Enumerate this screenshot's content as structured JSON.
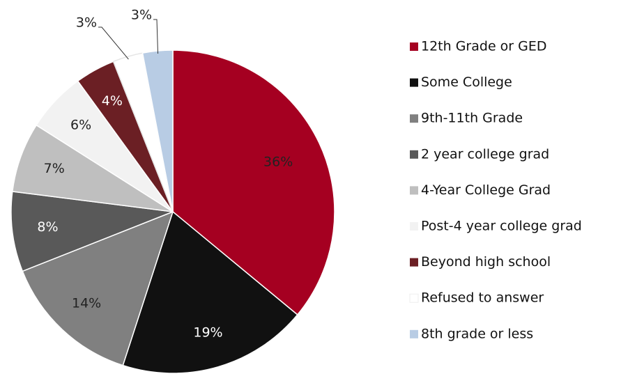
{
  "chart_data": {
    "type": "pie",
    "categories": [
      "12th Grade or GED",
      "Some College",
      "9th-11th Grade",
      "2 year college grad",
      "4-Year College Grad",
      "Post-4 year college grad",
      "Beyond high school",
      "Refused to answer",
      "8th grade or less"
    ],
    "values": [
      36,
      19,
      14,
      8,
      7,
      6,
      4,
      3,
      3
    ],
    "value_labels": [
      "36%",
      "19%",
      "14%",
      "8%",
      "7%",
      "6%",
      "4%",
      "3%",
      "3%"
    ],
    "colors": [
      "#a50021",
      "#111111",
      "#808080",
      "#595959",
      "#bfbfbf",
      "#f2f2f2",
      "#6b1f24",
      "#ffffff",
      "#b8cce4"
    ],
    "legend": "right"
  }
}
